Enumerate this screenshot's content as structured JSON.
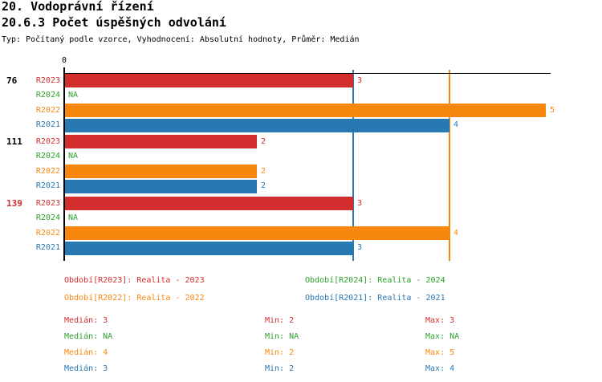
{
  "header": {
    "title": "20. Vodoprávní řízení",
    "subtitle": "20.6.3 Počet úspěšných odvolání",
    "meta": "Typ: Počítaný podle vzorce, Vyhodnocení: Absolutní hodnoty, Průměr: Medián"
  },
  "chart_data": {
    "type": "bar",
    "orientation": "horizontal",
    "title": "20. Vodoprávní řízení",
    "subtitle": "20.6.3 Počet úspěšných odvolání",
    "meta": "Typ: Počítaný podle vzorce, Vyhodnocení: Absolutní hodnoty, Průměr: Medián",
    "xlabel": "",
    "ylabel": "",
    "xlim": [
      0,
      5
    ],
    "axis_origin_label": "0",
    "grid": false,
    "series_order": [
      "R2023",
      "R2024",
      "R2022",
      "R2021"
    ],
    "colors": {
      "R2023": "#d32d2d",
      "R2024": "#2da02d",
      "R2022": "#f8870e",
      "R2021": "#2878b2",
      "axis": "#000000"
    },
    "groups": [
      {
        "label": "76",
        "label_color": "#000000",
        "bars": [
          {
            "series": "R2023",
            "value": 3,
            "label": "3"
          },
          {
            "series": "R2024",
            "value": null,
            "label": "NA"
          },
          {
            "series": "R2022",
            "value": 5,
            "label": "5"
          },
          {
            "series": "R2021",
            "value": 4,
            "label": "4"
          }
        ]
      },
      {
        "label": "111",
        "label_color": "#000000",
        "bars": [
          {
            "series": "R2023",
            "value": 2,
            "label": "2"
          },
          {
            "series": "R2024",
            "value": null,
            "label": "NA"
          },
          {
            "series": "R2022",
            "value": 2,
            "label": "2"
          },
          {
            "series": "R2021",
            "value": 2,
            "label": "2"
          }
        ]
      },
      {
        "label": "139",
        "label_color": "#d32d2d",
        "bars": [
          {
            "series": "R2023",
            "value": 3,
            "label": "3"
          },
          {
            "series": "R2024",
            "value": null,
            "label": "NA"
          },
          {
            "series": "R2022",
            "value": 4,
            "label": "4"
          },
          {
            "series": "R2021",
            "value": 3,
            "label": "3"
          }
        ]
      }
    ],
    "median_lines": [
      {
        "series": "R2023",
        "value": 3,
        "color": "#d32d2d"
      },
      {
        "series": "R2022",
        "value": 4,
        "color": "#f8870e"
      },
      {
        "series": "R2021",
        "value": 3,
        "color": "#2878b2"
      }
    ],
    "legend": [
      {
        "text": "Období[R2023]: Realita - 2023",
        "color": "#d32d2d"
      },
      {
        "text": "Období[R2024]: Realita - 2024",
        "color": "#2da02d"
      },
      {
        "text": "Období[R2022]: Realita - 2022",
        "color": "#f8870e"
      },
      {
        "text": "Období[R2021]: Realita - 2021",
        "color": "#2878b2"
      }
    ],
    "stats": [
      {
        "series": "R2023",
        "color": "#d32d2d",
        "median": "Medián: 3",
        "min": "Min: 2",
        "max": "Max: 3"
      },
      {
        "series": "R2024",
        "color": "#2da02d",
        "median": "Medián: NA",
        "min": "Min: NA",
        "max": "Max: NA"
      },
      {
        "series": "R2022",
        "color": "#f8870e",
        "median": "Medián: 4",
        "min": "Min: 2",
        "max": "Max: 5"
      },
      {
        "series": "R2021",
        "color": "#2878b2",
        "median": "Medián: 3",
        "min": "Min: 2",
        "max": "Max: 4"
      }
    ]
  }
}
